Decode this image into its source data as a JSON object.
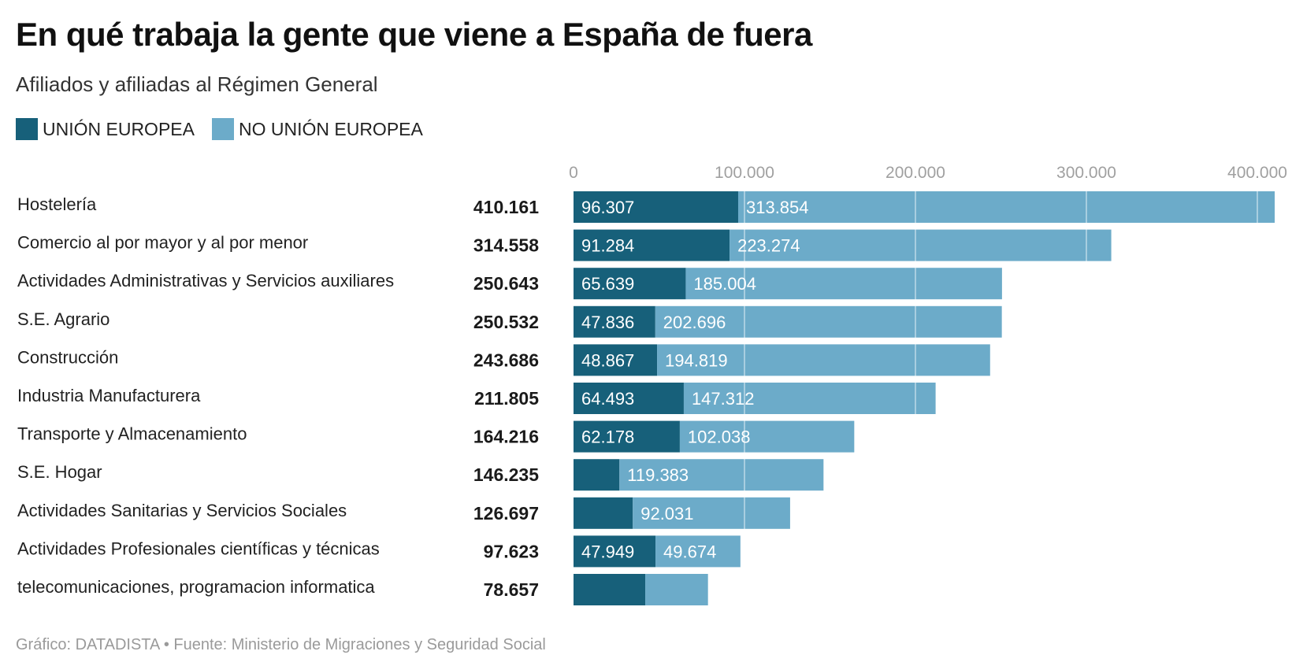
{
  "header": {
    "title": "En qué trabaja la gente que viene a España de fuera",
    "subtitle": "Afiliados y afiliadas al Régimen General"
  },
  "legend": [
    {
      "label": "UNIÓN EUROPEA",
      "color": "#17607a"
    },
    {
      "label": "NO UNIÓN EUROPEA",
      "color": "#6cabc9"
    }
  ],
  "footer": "Gráfico: DATADISTA • Fuente: Ministerio de Migraciones y Seguridad Social",
  "chart_data": {
    "type": "bar",
    "orientation": "horizontal",
    "stacked": true,
    "title": "En qué trabaja la gente que viene a España de fuera",
    "subtitle": "Afiliados y afiliadas al Régimen General",
    "xlim": [
      0,
      410161
    ],
    "xticks": [
      0,
      100000,
      200000,
      300000,
      400000
    ],
    "xtick_labels": [
      "0",
      "100.000",
      "200.000",
      "300.000",
      "400.000"
    ],
    "grid": true,
    "legend_position": "top-left",
    "categories": [
      "Hostelería",
      "Comercio al por mayor y al por menor",
      "Actividades Administrativas y Servicios auxiliares",
      "S.E. Agrario",
      "Construcción",
      "Industria Manufacturera",
      "Transporte y Almacenamiento",
      "S.E. Hogar",
      "Actividades Sanitarias y Servicios Sociales",
      "Actividades Profesionales científicas y técnicas",
      "telecomunicaciones, programacion informatica"
    ],
    "totals": [
      "410.161",
      "314.558",
      "250.643",
      "250.532",
      "243.686",
      "211.805",
      "164.216",
      "146.235",
      "126.697",
      "97.623",
      "78.657"
    ],
    "series": [
      {
        "name": "UNIÓN EUROPEA",
        "color": "#17607a",
        "values": [
          96307,
          91284,
          65639,
          47836,
          48867,
          64493,
          62178,
          26852,
          34666,
          47949,
          41950
        ],
        "labels": [
          "96.307",
          "91.284",
          "65.639",
          "47.836",
          "48.867",
          "64.493",
          "62.178",
          "",
          "",
          "47.949",
          ""
        ]
      },
      {
        "name": "NO UNIÓN EUROPEA",
        "color": "#6cabc9",
        "values": [
          313854,
          223274,
          185004,
          202696,
          194819,
          147312,
          102038,
          119383,
          92031,
          49674,
          36707
        ],
        "labels": [
          "313.854",
          "223.274",
          "185.004",
          "202.696",
          "194.819",
          "147.312",
          "102.038",
          "119.383",
          "92.031",
          "49.674",
          ""
        ]
      }
    ]
  }
}
